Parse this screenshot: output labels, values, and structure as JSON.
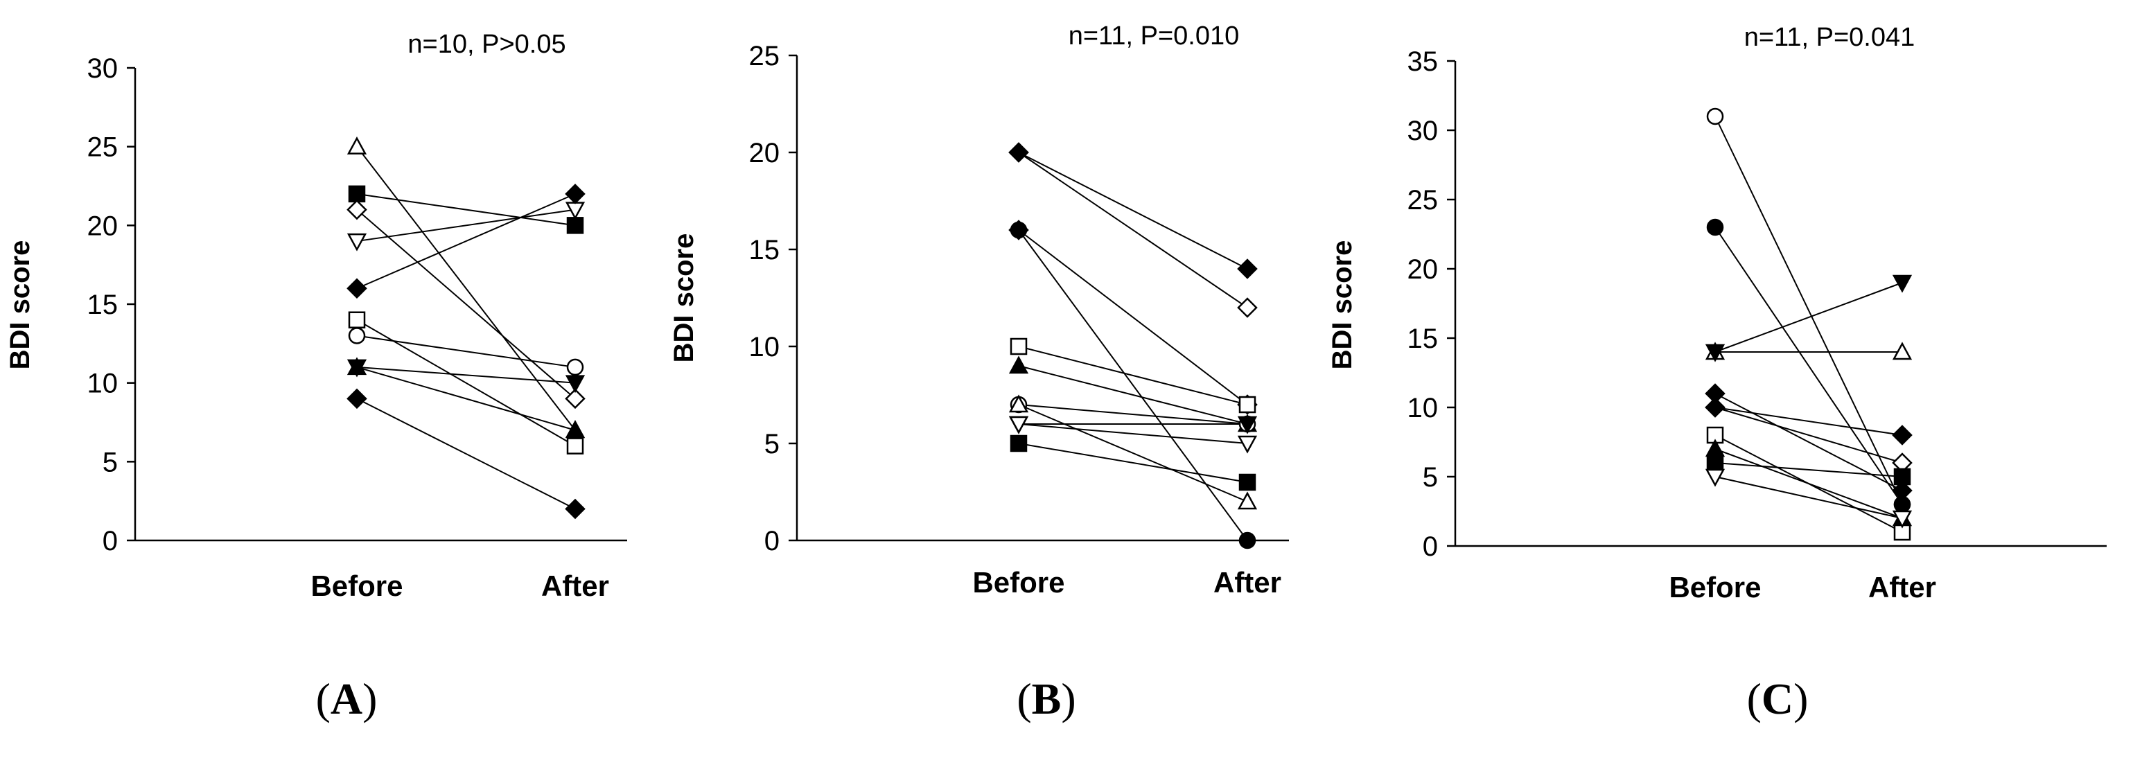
{
  "chart_data": [
    {
      "type": "line",
      "panel_label_open": "(",
      "panel_letter": "A",
      "panel_label_close": ")",
      "annotation": "n=10, P>0.05",
      "ylabel": "BDI score",
      "categories": [
        "Before",
        "After"
      ],
      "ylim": [
        0,
        30
      ],
      "yticks": [
        "0",
        "5",
        "10",
        "15",
        "20",
        "25",
        "30"
      ],
      "series": [
        {
          "marker": "open-triangle-up",
          "values": [
            25,
            7
          ]
        },
        {
          "marker": "filled-square",
          "values": [
            22,
            20
          ]
        },
        {
          "marker": "open-diamond",
          "values": [
            21,
            9
          ]
        },
        {
          "marker": "open-triangle-down",
          "values": [
            19,
            21
          ]
        },
        {
          "marker": "filled-diamond",
          "values": [
            16,
            22
          ]
        },
        {
          "marker": "open-square",
          "values": [
            14,
            6
          ]
        },
        {
          "marker": "open-circle",
          "values": [
            13,
            11
          ]
        },
        {
          "marker": "filled-triangle-down",
          "values": [
            11,
            10
          ]
        },
        {
          "marker": "filled-triangle-up",
          "values": [
            11,
            7
          ]
        },
        {
          "marker": "filled-diamond",
          "values": [
            9,
            2
          ]
        }
      ]
    },
    {
      "type": "line",
      "panel_label_open": "(",
      "panel_letter": "B",
      "panel_label_close": ")",
      "annotation": "n=11, P=0.010",
      "ylabel": "BDI score",
      "categories": [
        "Before",
        "After"
      ],
      "ylim": [
        0,
        25
      ],
      "yticks": [
        "0",
        "5",
        "10",
        "15",
        "20",
        "25"
      ],
      "series": [
        {
          "marker": "open-diamond",
          "values": [
            20,
            12
          ]
        },
        {
          "marker": "filled-diamond",
          "values": [
            20,
            14
          ]
        },
        {
          "marker": "filled-circle",
          "values": [
            16,
            0
          ]
        },
        {
          "marker": "filled-diamond",
          "values": [
            16,
            7
          ]
        },
        {
          "marker": "open-square",
          "values": [
            10,
            7
          ]
        },
        {
          "marker": "filled-triangle-up",
          "values": [
            9,
            6
          ]
        },
        {
          "marker": "open-circle",
          "values": [
            7,
            6
          ]
        },
        {
          "marker": "open-triangle-up",
          "values": [
            7,
            2
          ]
        },
        {
          "marker": "filled-triangle-down",
          "values": [
            6,
            6
          ]
        },
        {
          "marker": "open-triangle-down",
          "values": [
            6,
            5
          ]
        },
        {
          "marker": "filled-square",
          "values": [
            5,
            3
          ]
        }
      ]
    },
    {
      "type": "line",
      "panel_label_open": "(",
      "panel_letter": "C",
      "panel_label_close": ")",
      "annotation": "n=11, P=0.041",
      "ylabel": "BDI score",
      "categories": [
        "Before",
        "After"
      ],
      "ylim": [
        0,
        35
      ],
      "yticks": [
        "0",
        "5",
        "10",
        "15",
        "20",
        "25",
        "30",
        "35"
      ],
      "series": [
        {
          "marker": "open-circle",
          "values": [
            31,
            3
          ]
        },
        {
          "marker": "filled-circle",
          "values": [
            23,
            3
          ]
        },
        {
          "marker": "open-triangle-up",
          "values": [
            14,
            14
          ]
        },
        {
          "marker": "filled-triangle-down",
          "values": [
            14,
            19
          ]
        },
        {
          "marker": "filled-diamond",
          "values": [
            11,
            4
          ]
        },
        {
          "marker": "open-diamond",
          "values": [
            10,
            6
          ]
        },
        {
          "marker": "filled-diamond",
          "values": [
            10,
            8
          ]
        },
        {
          "marker": "open-square",
          "values": [
            8,
            1
          ]
        },
        {
          "marker": "filled-triangle-up",
          "values": [
            7,
            2
          ]
        },
        {
          "marker": "filled-square",
          "values": [
            6,
            5
          ]
        },
        {
          "marker": "open-triangle-down",
          "values": [
            5,
            2
          ]
        }
      ]
    }
  ]
}
